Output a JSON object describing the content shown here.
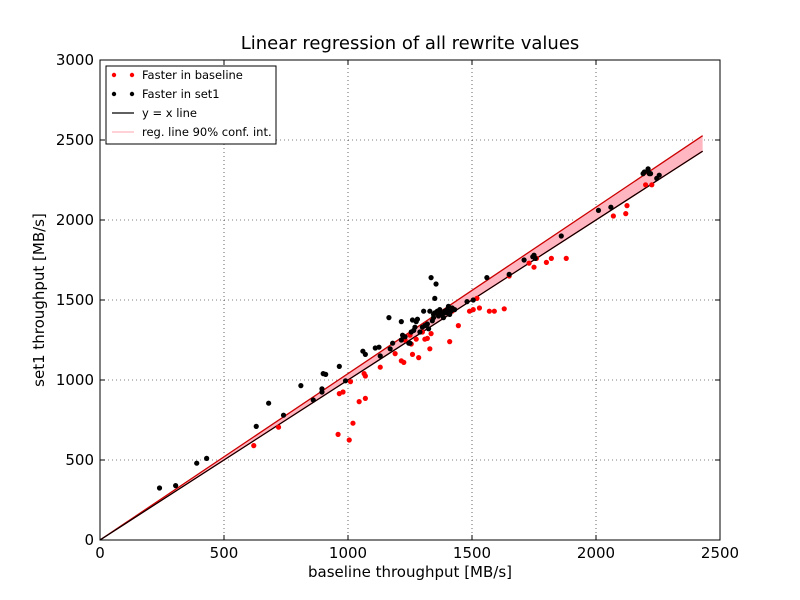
{
  "chart_data": {
    "type": "scatter",
    "title": "Linear regression of all rewrite values",
    "xlabel": "baseline throughput [MB/s]",
    "ylabel": "set1 throughput [MB/s]",
    "xlim": [
      0,
      2500
    ],
    "ylim": [
      0,
      3000
    ],
    "xticks": [
      0,
      500,
      1000,
      1500,
      2000,
      2500
    ],
    "yticks": [
      0,
      500,
      1000,
      1500,
      2000,
      2500,
      3000
    ],
    "grid": true,
    "legend_position": "top-left",
    "colors": {
      "baseline": "#ff0000",
      "set1": "#000000",
      "identity": "#000000",
      "regression": "#cc0000",
      "band": "#ffb6c1"
    },
    "series": [
      {
        "name": "Faster in baseline",
        "kind": "points",
        "points": [
          [
            620,
            590
          ],
          [
            720,
            705
          ],
          [
            960,
            660
          ],
          [
            965,
            915
          ],
          [
            980,
            925
          ],
          [
            1005,
            625
          ],
          [
            1010,
            990
          ],
          [
            1020,
            730
          ],
          [
            1045,
            865
          ],
          [
            1065,
            1040
          ],
          [
            1070,
            1025
          ],
          [
            1070,
            885
          ],
          [
            1130,
            1080
          ],
          [
            1190,
            1165
          ],
          [
            1215,
            1120
          ],
          [
            1225,
            1110
          ],
          [
            1230,
            1250
          ],
          [
            1250,
            1280
          ],
          [
            1255,
            1225
          ],
          [
            1260,
            1160
          ],
          [
            1275,
            1255
          ],
          [
            1285,
            1140
          ],
          [
            1300,
            1300
          ],
          [
            1310,
            1255
          ],
          [
            1320,
            1260
          ],
          [
            1330,
            1195
          ],
          [
            1335,
            1290
          ],
          [
            1410,
            1240
          ],
          [
            1420,
            1430
          ],
          [
            1445,
            1340
          ],
          [
            1490,
            1430
          ],
          [
            1505,
            1440
          ],
          [
            1520,
            1510
          ],
          [
            1530,
            1450
          ],
          [
            1570,
            1430
          ],
          [
            1590,
            1430
          ],
          [
            1630,
            1445
          ],
          [
            1650,
            1650
          ],
          [
            1730,
            1730
          ],
          [
            1750,
            1705
          ],
          [
            1760,
            1760
          ],
          [
            1800,
            1735
          ],
          [
            1820,
            1760
          ],
          [
            1880,
            1760
          ],
          [
            2070,
            2025
          ],
          [
            2120,
            2040
          ],
          [
            2125,
            2090
          ],
          [
            2200,
            2220
          ],
          [
            2225,
            2220
          ]
        ]
      },
      {
        "name": "Faster in set1",
        "kind": "points",
        "points": [
          [
            240,
            325
          ],
          [
            305,
            340
          ],
          [
            390,
            480
          ],
          [
            430,
            510
          ],
          [
            630,
            710
          ],
          [
            680,
            855
          ],
          [
            740,
            780
          ],
          [
            810,
            965
          ],
          [
            860,
            875
          ],
          [
            895,
            945
          ],
          [
            895,
            925
          ],
          [
            900,
            1040
          ],
          [
            910,
            1035
          ],
          [
            965,
            1085
          ],
          [
            990,
            995
          ],
          [
            1060,
            1180
          ],
          [
            1070,
            1160
          ],
          [
            1110,
            1200
          ],
          [
            1125,
            1205
          ],
          [
            1130,
            1150
          ],
          [
            1165,
            1390
          ],
          [
            1170,
            1195
          ],
          [
            1180,
            1230
          ],
          [
            1215,
            1365
          ],
          [
            1215,
            1250
          ],
          [
            1220,
            1280
          ],
          [
            1230,
            1270
          ],
          [
            1245,
            1230
          ],
          [
            1250,
            1230
          ],
          [
            1255,
            1300
          ],
          [
            1260,
            1375
          ],
          [
            1265,
            1310
          ],
          [
            1270,
            1330
          ],
          [
            1275,
            1365
          ],
          [
            1280,
            1380
          ],
          [
            1290,
            1300
          ],
          [
            1300,
            1330
          ],
          [
            1305,
            1430
          ],
          [
            1310,
            1340
          ],
          [
            1320,
            1350
          ],
          [
            1325,
            1320
          ],
          [
            1330,
            1430
          ],
          [
            1335,
            1640
          ],
          [
            1340,
            1370
          ],
          [
            1345,
            1390
          ],
          [
            1345,
            1410
          ],
          [
            1350,
            1510
          ],
          [
            1350,
            1420
          ],
          [
            1355,
            1600
          ],
          [
            1360,
            1430
          ],
          [
            1365,
            1400
          ],
          [
            1370,
            1440
          ],
          [
            1375,
            1420
          ],
          [
            1380,
            1410
          ],
          [
            1385,
            1390
          ],
          [
            1390,
            1430
          ],
          [
            1395,
            1420
          ],
          [
            1400,
            1440
          ],
          [
            1405,
            1460
          ],
          [
            1410,
            1410
          ],
          [
            1415,
            1430
          ],
          [
            1420,
            1450
          ],
          [
            1430,
            1440
          ],
          [
            1480,
            1490
          ],
          [
            1505,
            1500
          ],
          [
            1560,
            1640
          ],
          [
            1650,
            1660
          ],
          [
            1710,
            1750
          ],
          [
            1745,
            1770
          ],
          [
            1750,
            1780
          ],
          [
            1755,
            1760
          ],
          [
            1860,
            1900
          ],
          [
            2010,
            2060
          ],
          [
            2060,
            2080
          ],
          [
            2190,
            2290
          ],
          [
            2195,
            2300
          ],
          [
            2210,
            2310
          ],
          [
            2210,
            2320
          ],
          [
            2215,
            2290
          ],
          [
            2220,
            2290
          ],
          [
            2245,
            2260
          ],
          [
            2255,
            2280
          ]
        ]
      },
      {
        "name": "y = x line",
        "kind": "line",
        "slope": 1,
        "intercept": 0,
        "x_range": [
          0,
          2430
        ]
      },
      {
        "name": "reg. line 90% conf. int.",
        "kind": "band",
        "line": {
          "slope": 1.0,
          "intercept": 0
        },
        "upper": {
          "slope": 1.04,
          "intercept": 0
        },
        "x_range": [
          0,
          2430
        ]
      }
    ]
  }
}
